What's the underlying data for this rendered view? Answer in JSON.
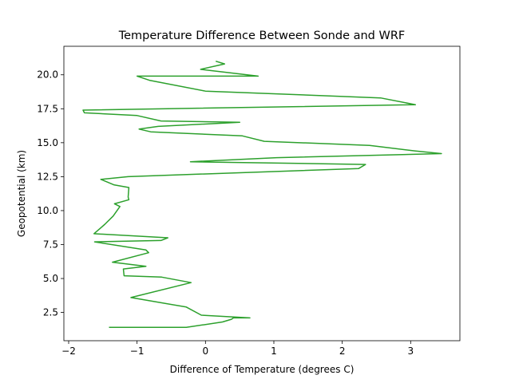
{
  "chart_data": {
    "type": "line",
    "title": "Temperature Difference Between Sonde and WRF",
    "xlabel": "Difference of Temperature (degrees C)",
    "ylabel": "Geopotential (km)",
    "xlim": [
      -2.07,
      3.72
    ],
    "ylim": [
      0.42,
      22.1
    ],
    "xticks": [
      -2,
      -1,
      0,
      1,
      2,
      3
    ],
    "xtick_labels": [
      "−2",
      "−1",
      "0",
      "1",
      "2",
      "3"
    ],
    "yticks": [
      2.5,
      5.0,
      7.5,
      10.0,
      12.5,
      15.0,
      17.5,
      20.0
    ],
    "ytick_labels": [
      "2.5",
      "5.0",
      "7.5",
      "10.0",
      "12.5",
      "15.0",
      "17.5",
      "20.0"
    ],
    "grid": false,
    "series": [
      {
        "color": "#2ca02c",
        "x": [
          -1.41,
          -0.28,
          0.25,
          0.38,
          0.41,
          0.65,
          -0.06,
          -0.28,
          -1.09,
          -0.21,
          -0.64,
          -1.19,
          -1.2,
          -0.87,
          -1.36,
          -0.83,
          -0.87,
          -1.62,
          -0.65,
          -0.55,
          -1.63,
          -1.47,
          -1.35,
          -1.25,
          -1.33,
          -1.12,
          -1.13,
          -1.12,
          -1.34,
          -1.53,
          -1.13,
          2.24,
          2.34,
          -0.22,
          1.04,
          3.45,
          3.06,
          2.4,
          0.86,
          0.54,
          -0.8,
          -0.97,
          -0.69,
          0.5,
          -0.65,
          -1.0,
          -1.77,
          -1.79,
          3.07,
          2.56,
          0.0,
          -0.82,
          -1.0,
          0.77,
          0.26,
          -0.07,
          0.28,
          0.15
        ],
        "y": [
          1.4,
          1.4,
          1.8,
          2.0,
          2.1,
          2.1,
          2.3,
          2.9,
          3.6,
          4.7,
          5.1,
          5.2,
          5.7,
          5.9,
          6.2,
          6.9,
          7.1,
          7.7,
          7.8,
          8.0,
          8.3,
          9.0,
          9.6,
          10.3,
          10.5,
          10.8,
          11.0,
          11.7,
          11.9,
          12.3,
          12.5,
          13.1,
          13.4,
          13.6,
          13.9,
          14.2,
          14.4,
          14.8,
          15.1,
          15.5,
          15.8,
          16.0,
          16.2,
          16.5,
          16.6,
          17.0,
          17.2,
          17.4,
          17.8,
          18.3,
          18.8,
          19.6,
          19.9,
          19.9,
          20.2,
          20.4,
          20.8,
          21.0
        ]
      }
    ]
  }
}
